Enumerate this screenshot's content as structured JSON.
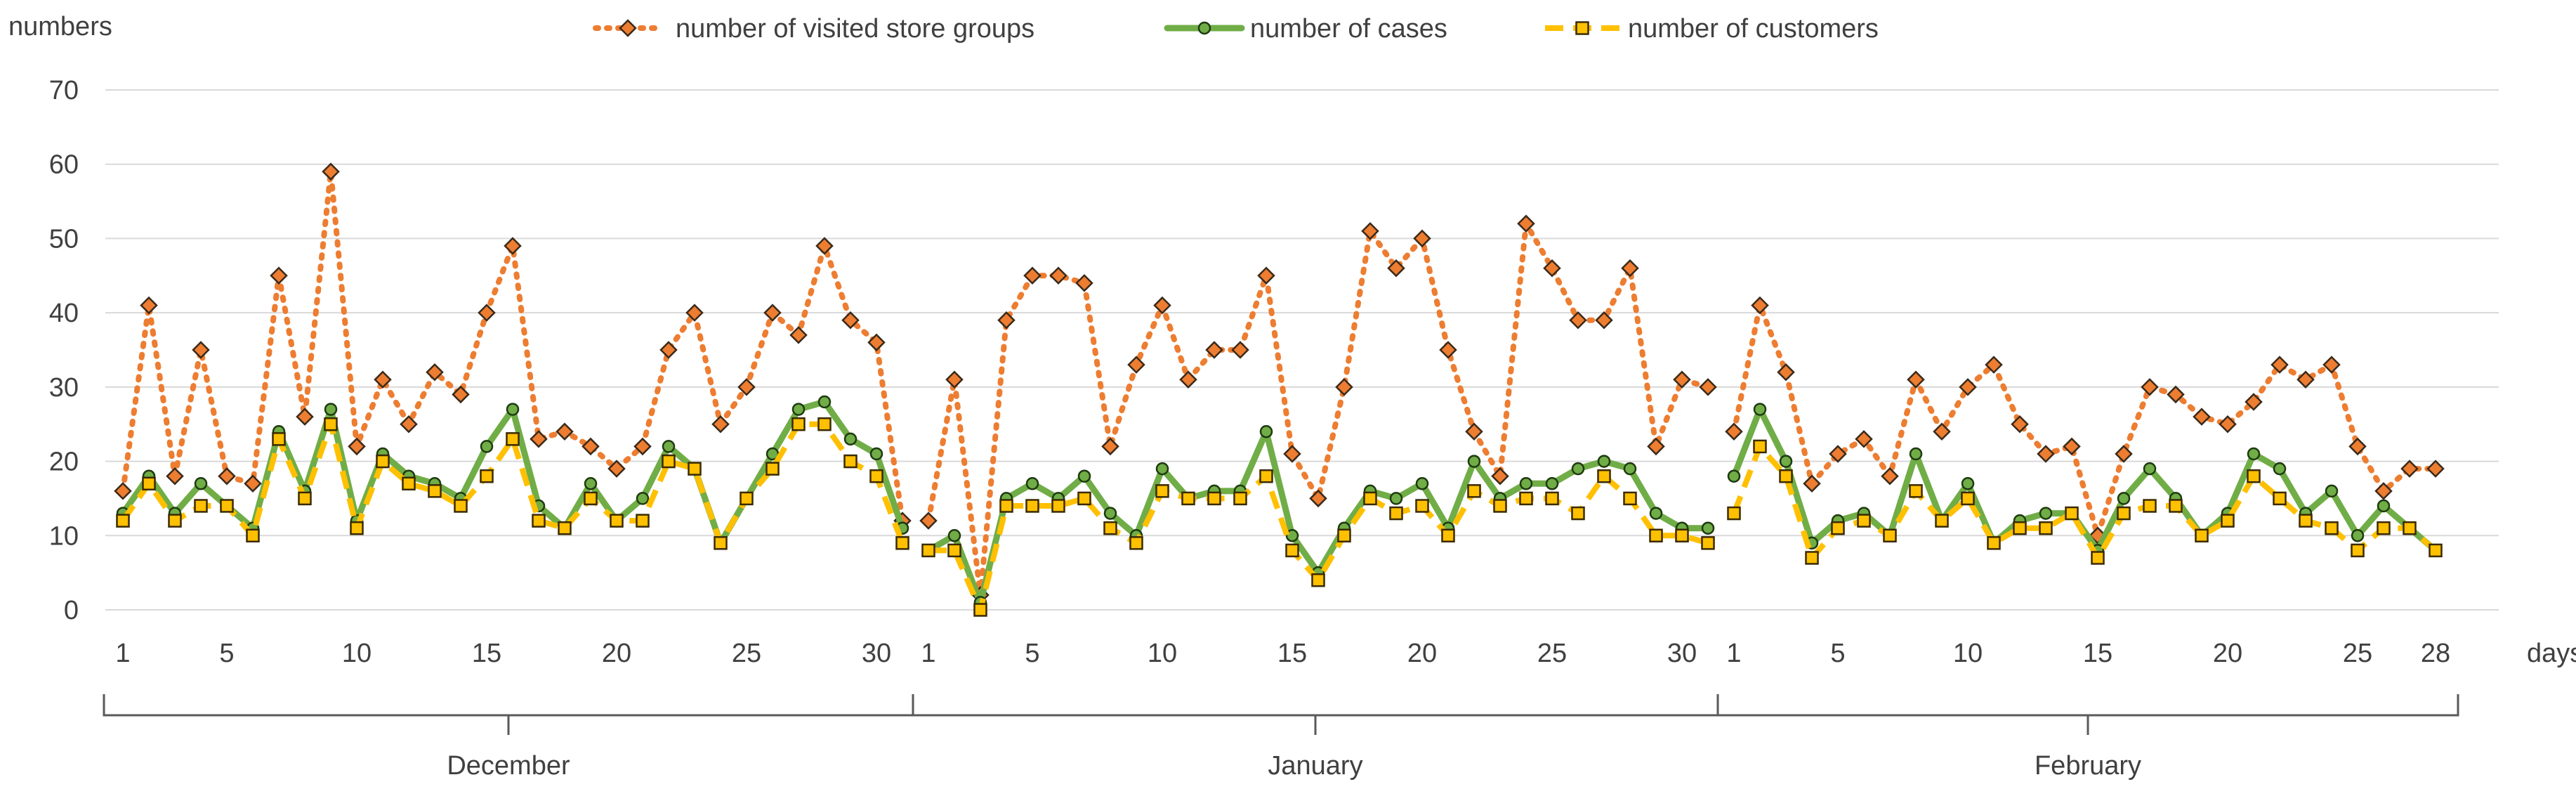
{
  "chart_data": {
    "type": "line",
    "ylabel": "numbers",
    "xlabel": "days",
    "ylim": [
      0,
      70
    ],
    "y_ticks": [
      0,
      10,
      20,
      30,
      40,
      50,
      60,
      70
    ],
    "months": [
      {
        "name": "December",
        "days": 31,
        "tick_labels": [
          "1",
          "5",
          "10",
          "15",
          "20",
          "25",
          "30"
        ]
      },
      {
        "name": "January",
        "days": 31,
        "tick_labels": [
          "1",
          "5",
          "10",
          "15",
          "20",
          "25",
          "30"
        ]
      },
      {
        "name": "February",
        "days": 28,
        "tick_labels": [
          "1",
          "5",
          "10",
          "15",
          "20",
          "25",
          "28"
        ]
      }
    ],
    "tick_days": [
      [
        1,
        5,
        10,
        15,
        20,
        25,
        30
      ],
      [
        1,
        5,
        10,
        15,
        20,
        25,
        30
      ],
      [
        1,
        5,
        10,
        15,
        20,
        25,
        28
      ]
    ],
    "series": [
      {
        "name": "number of visited store groups",
        "color": "#ED7D31",
        "values": [
          16,
          41,
          18,
          35,
          18,
          17,
          45,
          26,
          59,
          22,
          31,
          25,
          32,
          29,
          40,
          49,
          23,
          24,
          22,
          19,
          22,
          35,
          40,
          25,
          30,
          40,
          37,
          49,
          39,
          36,
          12,
          12,
          31,
          2,
          39,
          45,
          45,
          44,
          22,
          33,
          41,
          31,
          35,
          35,
          45,
          21,
          15,
          30,
          51,
          46,
          50,
          35,
          24,
          18,
          52,
          46,
          39,
          39,
          46,
          22,
          31,
          30,
          24,
          41,
          32,
          17,
          21,
          23,
          18,
          31,
          24,
          30,
          33,
          25,
          21,
          22,
          10,
          21,
          30,
          29,
          26,
          25,
          28,
          33,
          31,
          33,
          22,
          16,
          19,
          19
        ]
      },
      {
        "name": "number of cases",
        "color": "#70AD47",
        "values": [
          13,
          18,
          13,
          17,
          14,
          11,
          24,
          16,
          27,
          12,
          21,
          18,
          17,
          15,
          22,
          27,
          14,
          11,
          17,
          12,
          15,
          22,
          19,
          9,
          15,
          21,
          27,
          28,
          23,
          21,
          11,
          8,
          10,
          1,
          15,
          17,
          15,
          18,
          13,
          10,
          19,
          15,
          16,
          16,
          24,
          10,
          5,
          11,
          16,
          15,
          17,
          11,
          20,
          15,
          17,
          17,
          19,
          20,
          19,
          13,
          11,
          11,
          18,
          27,
          20,
          9,
          12,
          13,
          10,
          21,
          12,
          17,
          9,
          12,
          13,
          13,
          8,
          15,
          19,
          15,
          10,
          13,
          21,
          19,
          13,
          16,
          10,
          14,
          11,
          8
        ]
      },
      {
        "name": "number of customers",
        "color": "#FFC000",
        "values": [
          12,
          17,
          12,
          14,
          14,
          10,
          23,
          15,
          25,
          11,
          20,
          17,
          16,
          14,
          18,
          23,
          12,
          11,
          15,
          12,
          12,
          20,
          19,
          9,
          15,
          19,
          25,
          25,
          20,
          18,
          9,
          8,
          8,
          0,
          14,
          14,
          14,
          15,
          11,
          9,
          16,
          15,
          15,
          15,
          18,
          8,
          4,
          10,
          15,
          13,
          14,
          10,
          16,
          14,
          15,
          15,
          13,
          18,
          15,
          10,
          10,
          9,
          13,
          22,
          18,
          7,
          11,
          12,
          10,
          16,
          12,
          15,
          9,
          11,
          11,
          13,
          7,
          13,
          14,
          14,
          10,
          12,
          18,
          15,
          12,
          11,
          8,
          11,
          11,
          8
        ]
      }
    ]
  }
}
